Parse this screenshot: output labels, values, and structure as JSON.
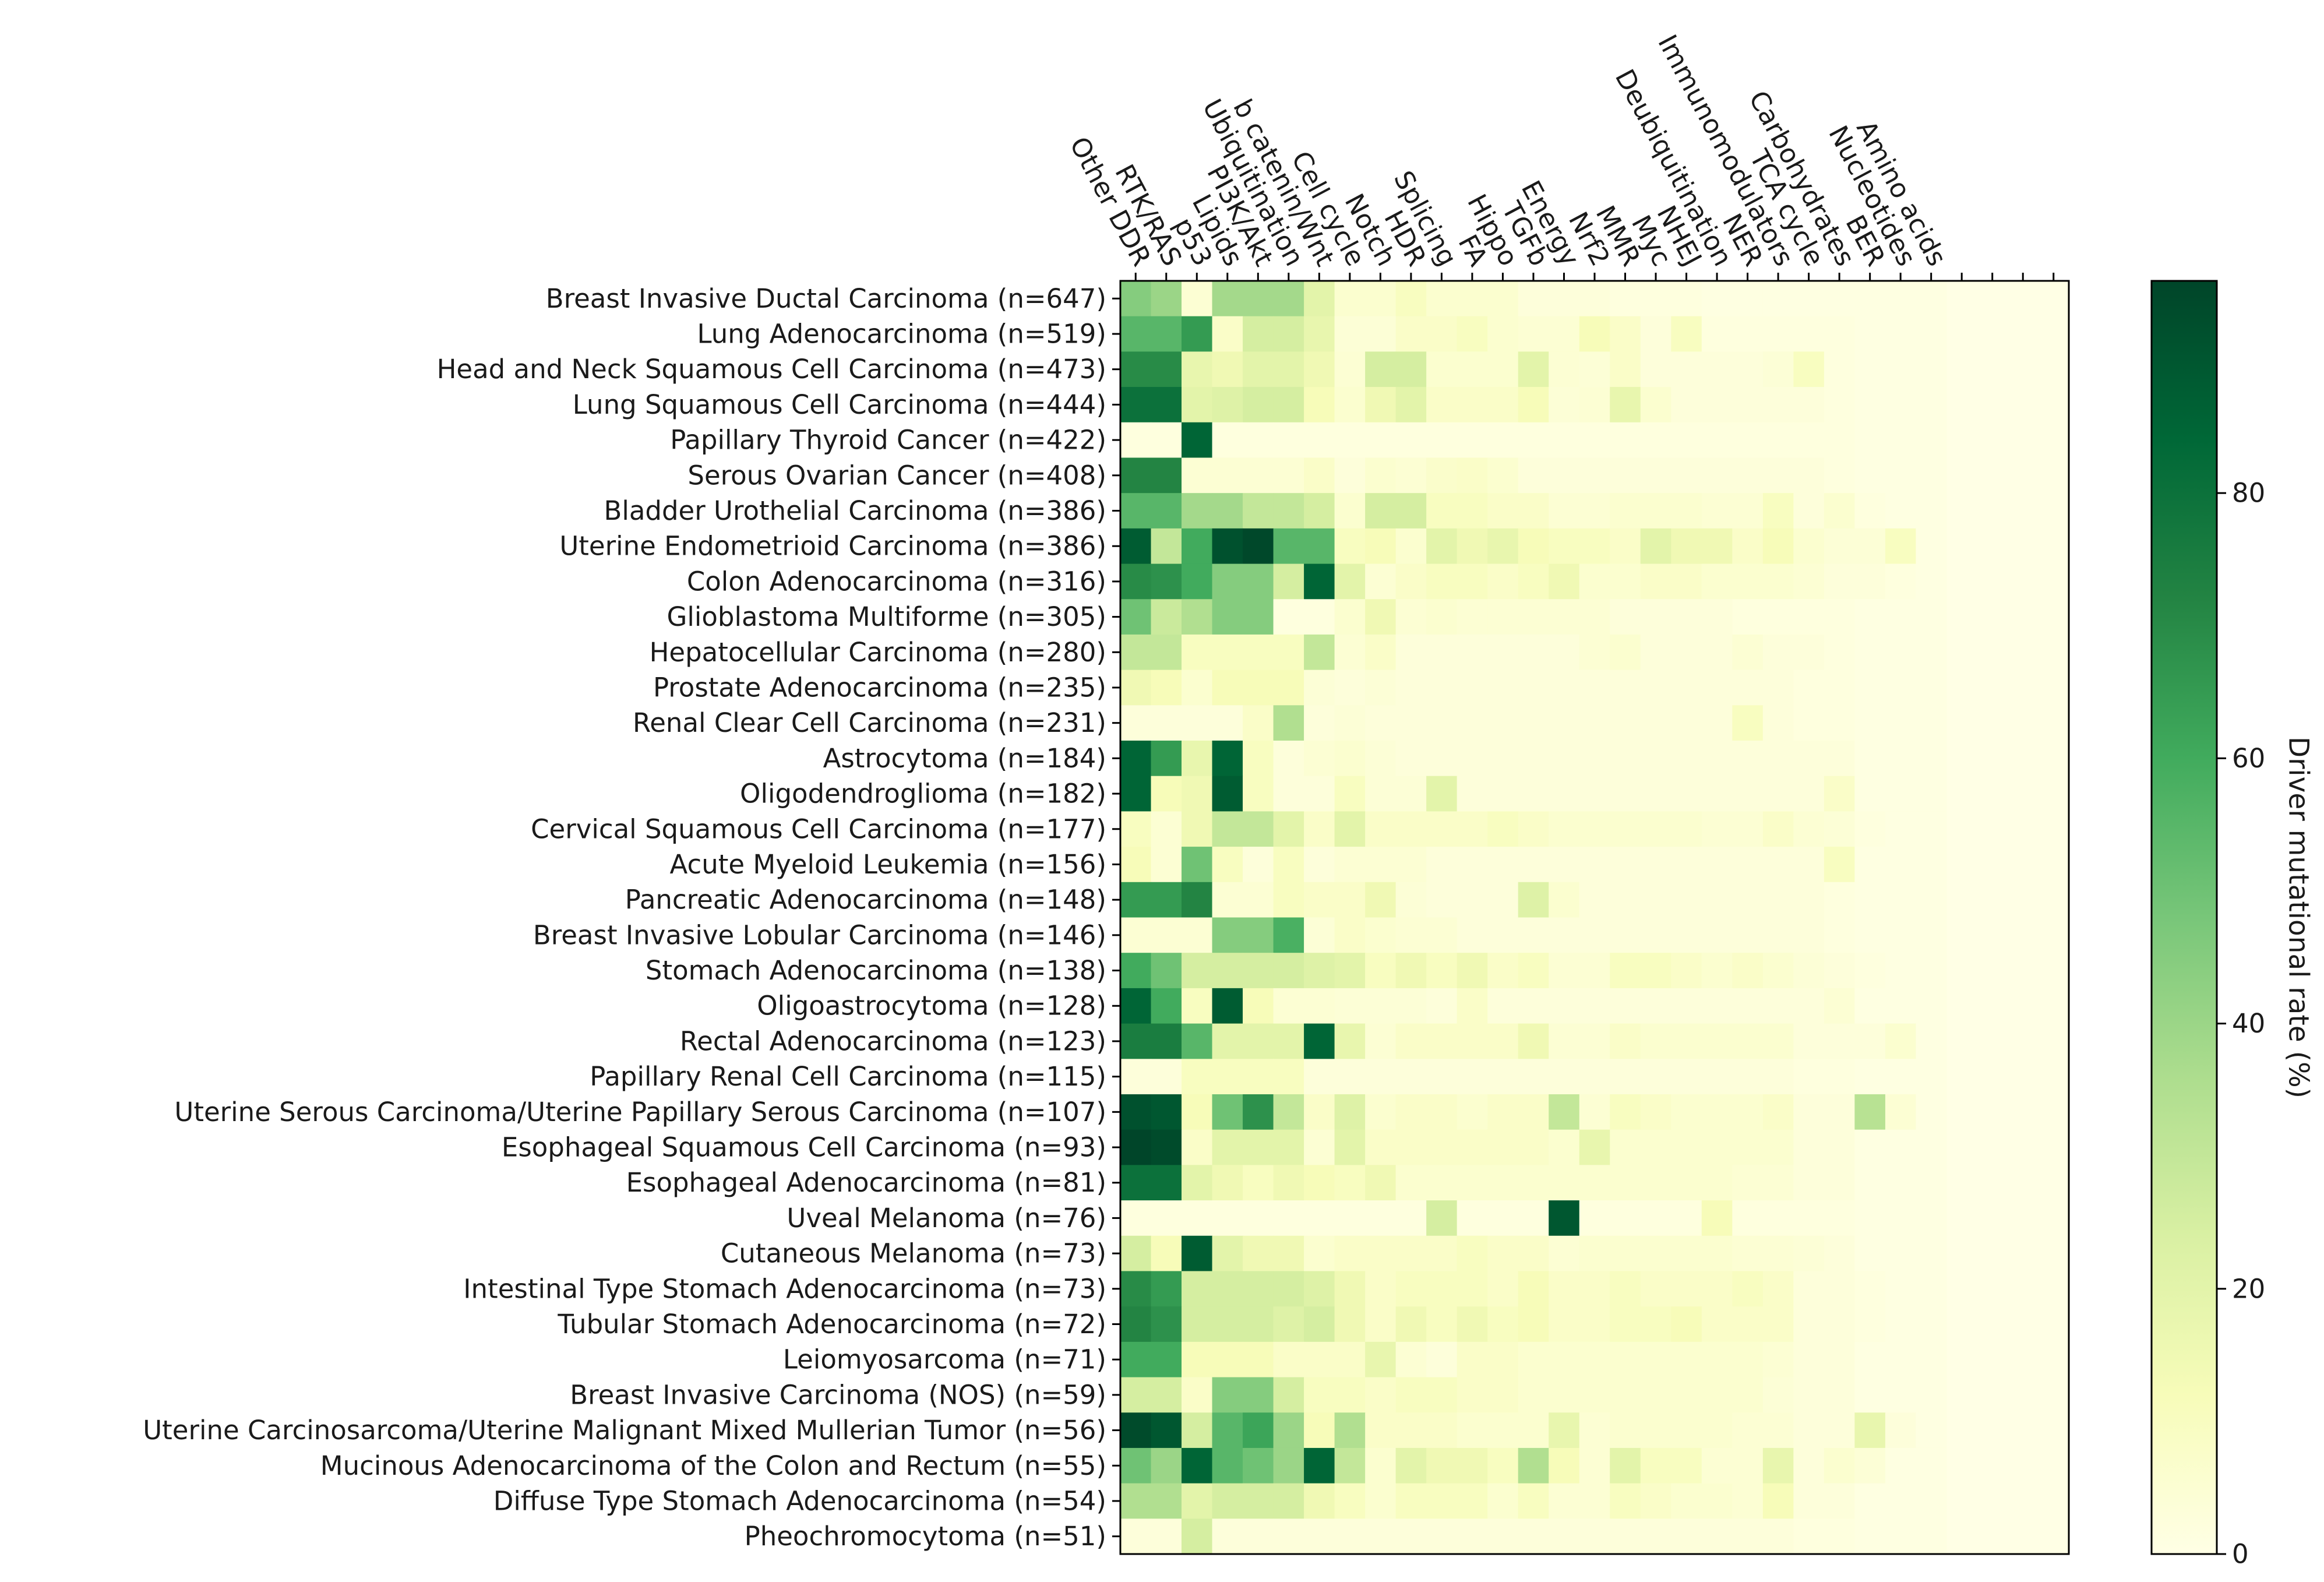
{
  "chart_data": {
    "type": "heatmap",
    "title": "",
    "colorbar": {
      "label": "Driver mutational rate (%)",
      "range": [
        0,
        96
      ],
      "ticks": [
        0,
        20,
        40,
        60,
        80
      ],
      "colormap": "Greens",
      "colors": [
        "#ffffe5",
        "#f7fcb9",
        "#d9f0a3",
        "#addd8e",
        "#78c679",
        "#41ab5d",
        "#238443",
        "#006837",
        "#004529"
      ]
    },
    "columns": [
      "Other DDR",
      "RTK/RAS",
      "p53",
      "Lipids",
      "PI3K/Akt",
      "Ubiquitination",
      "b catenin/Wnt",
      "Cell cycle",
      "Notch",
      "HDR",
      "Splicing",
      "FA",
      "Hippo",
      "TGFb",
      "Energy",
      "Nrf2",
      "MMR",
      "Myc",
      "NHEJ",
      "Deubiquitination",
      "NER",
      "Immunomodulators",
      "TCA cycle",
      "Carbohydrates",
      "BER",
      "Nucleotides",
      "Amino acids"
    ],
    "rows": [
      "Breast Invasive Ductal Carcinoma (n=647)",
      "Lung Adenocarcinoma (n=519)",
      "Head and Neck Squamous Cell Carcinoma (n=473)",
      "Lung Squamous Cell Carcinoma (n=444)",
      "Papillary Thyroid Cancer (n=422)",
      "Serous Ovarian Cancer (n=408)",
      "Bladder Urothelial Carcinoma (n=386)",
      "Uterine Endometrioid Carcinoma (n=386)",
      "Colon Adenocarcinoma (n=316)",
      "Glioblastoma Multiforme (n=305)",
      "Hepatocellular Carcinoma (n=280)",
      "Prostate Adenocarcinoma (n=235)",
      "Renal Clear Cell Carcinoma (n=231)",
      "Astrocytoma (n=184)",
      "Oligodendroglioma (n=182)",
      "Cervical Squamous Cell Carcinoma (n=177)",
      "Acute Myeloid Leukemia (n=156)",
      "Pancreatic Adenocarcinoma (n=148)",
      "Breast Invasive Lobular Carcinoma (n=146)",
      "Stomach Adenocarcinoma (n=138)",
      "Oligoastrocytoma (n=128)",
      "Rectal Adenocarcinoma (n=123)",
      "Papillary Renal Cell Carcinoma (n=115)",
      "Uterine Serous Carcinoma/Uterine Papillary Serous Carcinoma (n=107)",
      "Esophageal Squamous Cell Carcinoma (n=93)",
      "Esophageal Adenocarcinoma (n=81)",
      "Uveal Melanoma (n=76)",
      "Cutaneous Melanoma (n=73)",
      "Intestinal Type Stomach Adenocarcinoma (n=73)",
      "Tubular Stomach Adenocarcinoma (n=72)",
      "Leiomyosarcoma (n=71)",
      "Breast Invasive Carcinoma (NOS) (n=59)",
      "Uterine Carcinosarcoma/Uterine Malignant Mixed Mullerian Tumor (n=56)",
      "Mucinous Adenocarcinoma of the Colon and Rectum (n=55)",
      "Diffuse Type Stomach Adenocarcinoma (n=54)",
      "Pheochromocytoma (n=51)"
    ],
    "values": [
      [
        45,
        40,
        5,
        38,
        38,
        38,
        20,
        6,
        6,
        10,
        6,
        6,
        6,
        3,
        3,
        3,
        2,
        2,
        2,
        1,
        1,
        1,
        1,
        1,
        1,
        1,
        1
      ],
      [
        55,
        55,
        65,
        8,
        25,
        25,
        18,
        4,
        4,
        8,
        8,
        10,
        6,
        5,
        5,
        12,
        8,
        3,
        10,
        2,
        2,
        2,
        2,
        2,
        1,
        1,
        1
      ],
      [
        70,
        70,
        18,
        15,
        20,
        20,
        15,
        5,
        25,
        25,
        6,
        6,
        6,
        20,
        5,
        4,
        8,
        3,
        3,
        3,
        3,
        4,
        10,
        2,
        1,
        1,
        1
      ],
      [
        80,
        80,
        20,
        22,
        25,
        25,
        12,
        6,
        15,
        20,
        8,
        8,
        8,
        12,
        4,
        5,
        18,
        6,
        3,
        3,
        3,
        3,
        3,
        2,
        1,
        1,
        1
      ],
      [
        2,
        2,
        85,
        2,
        2,
        2,
        2,
        2,
        2,
        2,
        2,
        2,
        2,
        2,
        2,
        2,
        2,
        2,
        2,
        2,
        2,
        2,
        2,
        2,
        1,
        1,
        1
      ],
      [
        72,
        72,
        5,
        5,
        5,
        5,
        8,
        3,
        6,
        5,
        7,
        8,
        6,
        3,
        3,
        3,
        3,
        3,
        3,
        3,
        3,
        3,
        3,
        2,
        1,
        1,
        1
      ],
      [
        55,
        55,
        38,
        38,
        30,
        30,
        25,
        6,
        25,
        25,
        10,
        10,
        8,
        8,
        5,
        5,
        6,
        6,
        6,
        5,
        5,
        10,
        3,
        6,
        2,
        1,
        1
      ],
      [
        88,
        30,
        60,
        92,
        95,
        55,
        55,
        10,
        12,
        6,
        20,
        15,
        18,
        12,
        10,
        10,
        8,
        20,
        15,
        15,
        8,
        12,
        6,
        4,
        4,
        10,
        1
      ],
      [
        70,
        68,
        60,
        45,
        45,
        25,
        85,
        20,
        5,
        8,
        10,
        10,
        8,
        10,
        15,
        6,
        6,
        8,
        8,
        6,
        6,
        6,
        5,
        3,
        3,
        2,
        1
      ],
      [
        50,
        28,
        35,
        45,
        45,
        2,
        2,
        6,
        15,
        5,
        6,
        5,
        5,
        5,
        5,
        5,
        3,
        3,
        3,
        3,
        2,
        2,
        2,
        2,
        1,
        1,
        1
      ],
      [
        30,
        30,
        10,
        10,
        10,
        10,
        30,
        5,
        8,
        3,
        3,
        3,
        3,
        3,
        3,
        5,
        6,
        3,
        3,
        3,
        5,
        3,
        3,
        2,
        1,
        1,
        1
      ],
      [
        15,
        12,
        6,
        12,
        12,
        12,
        4,
        3,
        4,
        3,
        3,
        3,
        3,
        3,
        3,
        3,
        3,
        3,
        3,
        3,
        3,
        3,
        2,
        2,
        1,
        1,
        1
      ],
      [
        3,
        3,
        3,
        3,
        8,
        35,
        3,
        4,
        3,
        3,
        3,
        3,
        3,
        3,
        3,
        3,
        3,
        3,
        3,
        3,
        10,
        3,
        2,
        2,
        1,
        1,
        1
      ],
      [
        85,
        65,
        18,
        85,
        10,
        3,
        5,
        6,
        4,
        3,
        3,
        3,
        3,
        3,
        3,
        3,
        3,
        3,
        3,
        3,
        3,
        3,
        3,
        3,
        1,
        1,
        1
      ],
      [
        85,
        12,
        15,
        88,
        10,
        3,
        3,
        10,
        4,
        4,
        20,
        3,
        3,
        3,
        3,
        3,
        3,
        3,
        3,
        3,
        3,
        3,
        3,
        8,
        1,
        1,
        1
      ],
      [
        10,
        5,
        15,
        30,
        30,
        20,
        8,
        20,
        8,
        8,
        8,
        8,
        10,
        8,
        6,
        6,
        6,
        6,
        6,
        5,
        5,
        8,
        5,
        4,
        2,
        1,
        1
      ],
      [
        12,
        5,
        50,
        10,
        3,
        10,
        3,
        5,
        5,
        5,
        3,
        3,
        3,
        3,
        3,
        3,
        3,
        3,
        3,
        3,
        3,
        3,
        3,
        10,
        1,
        1,
        1
      ],
      [
        65,
        65,
        72,
        5,
        5,
        10,
        8,
        8,
        15,
        4,
        3,
        3,
        3,
        22,
        6,
        3,
        3,
        3,
        3,
        3,
        3,
        3,
        3,
        2,
        1,
        1,
        1
      ],
      [
        5,
        5,
        5,
        45,
        45,
        58,
        4,
        8,
        6,
        5,
        5,
        3,
        3,
        3,
        3,
        3,
        3,
        3,
        3,
        3,
        3,
        3,
        3,
        2,
        1,
        1,
        1
      ],
      [
        60,
        50,
        25,
        25,
        25,
        25,
        22,
        20,
        10,
        15,
        10,
        15,
        8,
        10,
        5,
        5,
        10,
        10,
        8,
        6,
        8,
        6,
        4,
        3,
        2,
        1,
        1
      ],
      [
        85,
        60,
        10,
        88,
        12,
        5,
        5,
        4,
        4,
        4,
        3,
        8,
        3,
        3,
        3,
        3,
        3,
        3,
        3,
        3,
        3,
        3,
        3,
        5,
        1,
        1,
        1
      ],
      [
        75,
        75,
        55,
        20,
        20,
        20,
        85,
        18,
        5,
        8,
        8,
        8,
        8,
        15,
        5,
        5,
        8,
        6,
        6,
        6,
        6,
        6,
        3,
        3,
        3,
        6,
        1
      ],
      [
        3,
        3,
        10,
        10,
        10,
        10,
        3,
        3,
        3,
        3,
        3,
        3,
        3,
        3,
        3,
        3,
        3,
        3,
        3,
        3,
        3,
        3,
        2,
        2,
        1,
        1,
        1
      ],
      [
        92,
        90,
        12,
        50,
        68,
        30,
        8,
        22,
        6,
        8,
        8,
        6,
        8,
        8,
        30,
        5,
        10,
        8,
        6,
        6,
        6,
        8,
        3,
        3,
        33,
        5,
        1
      ],
      [
        96,
        94,
        8,
        20,
        20,
        20,
        5,
        20,
        8,
        8,
        8,
        8,
        8,
        8,
        6,
        18,
        6,
        6,
        6,
        6,
        6,
        6,
        3,
        3,
        1,
        1,
        1
      ],
      [
        80,
        80,
        20,
        15,
        10,
        15,
        12,
        10,
        15,
        6,
        6,
        6,
        6,
        6,
        6,
        6,
        6,
        6,
        6,
        6,
        5,
        5,
        3,
        3,
        1,
        1,
        1
      ],
      [
        2,
        2,
        2,
        2,
        2,
        2,
        2,
        2,
        2,
        2,
        25,
        2,
        2,
        2,
        90,
        2,
        2,
        2,
        2,
        12,
        2,
        2,
        2,
        2,
        1,
        1,
        1
      ],
      [
        25,
        12,
        88,
        20,
        15,
        15,
        6,
        8,
        8,
        8,
        8,
        10,
        8,
        8,
        5,
        6,
        6,
        6,
        6,
        6,
        5,
        5,
        4,
        3,
        1,
        1,
        1
      ],
      [
        70,
        65,
        25,
        25,
        25,
        25,
        22,
        15,
        8,
        10,
        10,
        10,
        8,
        12,
        8,
        8,
        10,
        8,
        8,
        8,
        10,
        8,
        3,
        3,
        2,
        1,
        1
      ],
      [
        72,
        68,
        25,
        25,
        25,
        22,
        25,
        15,
        8,
        15,
        10,
        15,
        10,
        12,
        8,
        8,
        10,
        10,
        12,
        8,
        8,
        8,
        3,
        3,
        2,
        1,
        1
      ],
      [
        60,
        60,
        12,
        12,
        12,
        8,
        8,
        8,
        18,
        5,
        3,
        8,
        8,
        6,
        6,
        6,
        6,
        6,
        6,
        6,
        6,
        5,
        3,
        3,
        1,
        1,
        1
      ],
      [
        25,
        25,
        8,
        45,
        45,
        25,
        10,
        10,
        8,
        10,
        10,
        8,
        8,
        6,
        6,
        6,
        6,
        6,
        6,
        6,
        6,
        4,
        3,
        3,
        1,
        1,
        1
      ],
      [
        94,
        90,
        25,
        55,
        62,
        40,
        12,
        35,
        8,
        8,
        8,
        6,
        6,
        6,
        18,
        5,
        6,
        6,
        6,
        6,
        5,
        5,
        3,
        3,
        18,
        3,
        1
      ],
      [
        50,
        40,
        85,
        55,
        50,
        40,
        85,
        30,
        6,
        20,
        15,
        15,
        10,
        35,
        12,
        5,
        20,
        10,
        10,
        5,
        5,
        18,
        3,
        6,
        4,
        1,
        1
      ],
      [
        35,
        35,
        20,
        25,
        25,
        25,
        15,
        10,
        6,
        10,
        10,
        10,
        6,
        10,
        5,
        5,
        10,
        8,
        6,
        6,
        5,
        12,
        3,
        3,
        1,
        1,
        1
      ],
      [
        3,
        3,
        25,
        3,
        3,
        3,
        3,
        3,
        3,
        3,
        3,
        3,
        3,
        3,
        3,
        3,
        3,
        3,
        3,
        3,
        3,
        3,
        2,
        2,
        1,
        1,
        1
      ]
    ]
  }
}
